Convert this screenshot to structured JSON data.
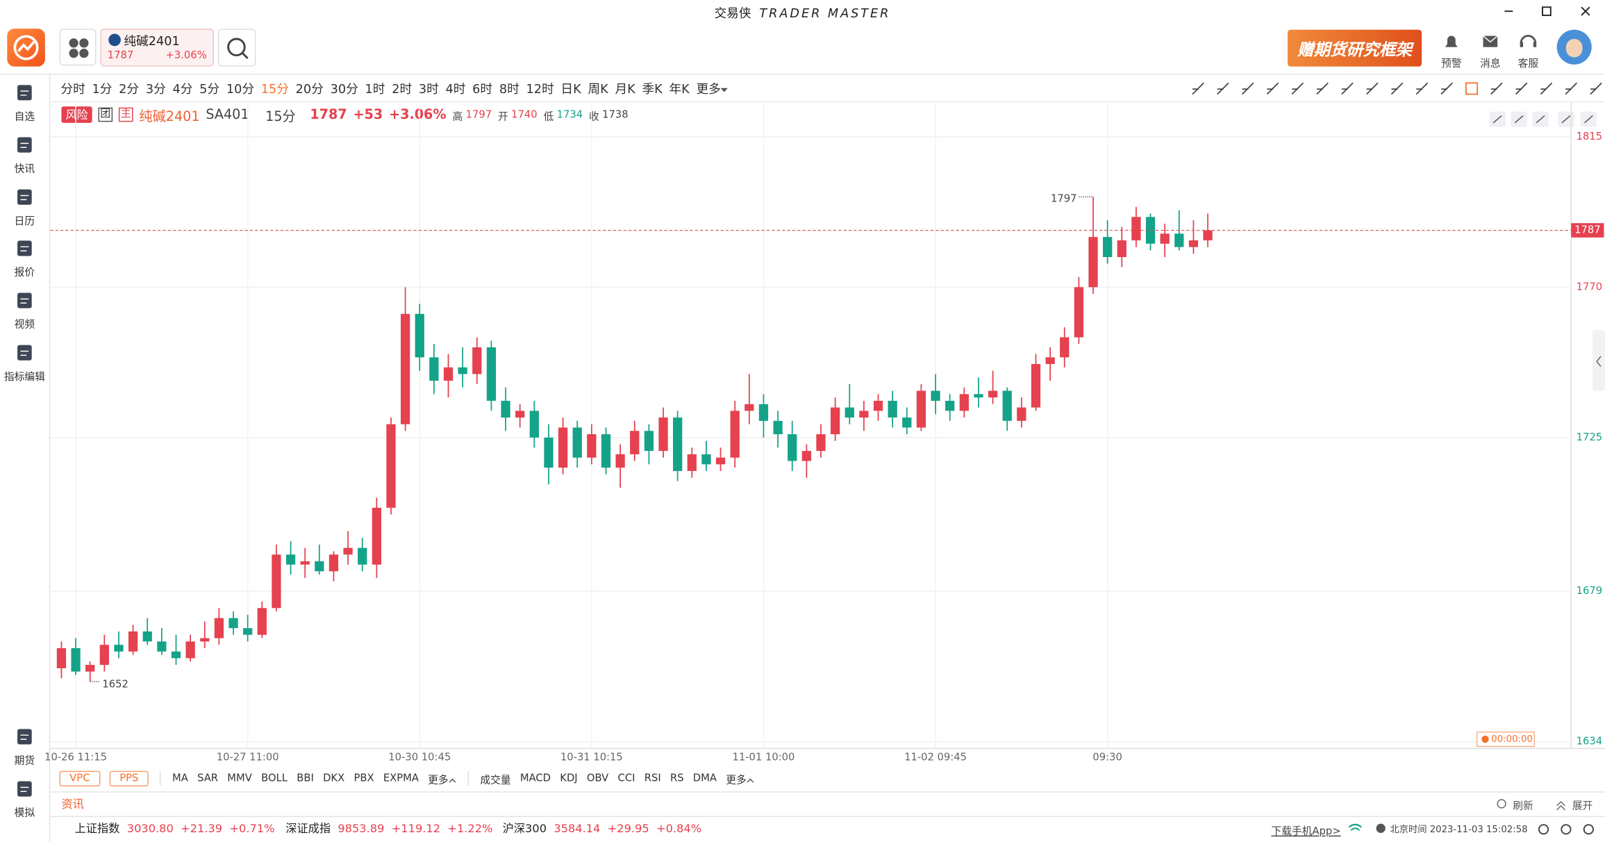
{
  "window": {
    "title": "交易侠",
    "subtitle": "TRADER MASTER"
  },
  "top_bar": {
    "contract": {
      "name": "纯碱2401",
      "price": "1787",
      "change": "+3.06%"
    },
    "banner": "赠期货研究框架",
    "actions": [
      "预警",
      "消息",
      "客服"
    ]
  },
  "sidebar": {
    "top": [
      "自选",
      "快讯",
      "日历",
      "报价",
      "视频",
      "指标编辑"
    ],
    "bottom": [
      "期货",
      "模拟"
    ]
  },
  "periods": {
    "items": [
      "分时",
      "1分",
      "2分",
      "3分",
      "4分",
      "5分",
      "10分",
      "15分",
      "20分",
      "30分",
      "1时",
      "2时",
      "3时",
      "4时",
      "6时",
      "8时",
      "12时",
      "日K",
      "周K",
      "月K",
      "季K",
      "年K",
      "更多"
    ],
    "active": 7
  },
  "quote": {
    "risk": "风险",
    "tags": [
      "团",
      "主"
    ],
    "name": "纯碱2401",
    "code": "SA401",
    "period": "15分",
    "price": 1787,
    "change": "+53",
    "pct": "+3.06%",
    "high_label": "高",
    "high": 1797,
    "open_label": "开",
    "open": 1740,
    "low_label": "低",
    "low": 1734,
    "close_label": "收",
    "close": 1738
  },
  "chart_data": {
    "type": "candlestick",
    "up_color": "#e5414f",
    "down_color": "#14a389",
    "grid": true,
    "categories": [
      null,
      "10-26 11:15",
      null,
      null,
      null,
      null,
      null,
      null,
      null,
      null,
      null,
      null,
      null,
      "10-27 11:00",
      null,
      null,
      null,
      null,
      null,
      null,
      null,
      null,
      null,
      null,
      null,
      "10-30 10:45",
      null,
      null,
      null,
      null,
      null,
      null,
      null,
      null,
      null,
      null,
      null,
      "10-31 10:15",
      null,
      null,
      null,
      null,
      null,
      null,
      null,
      null,
      null,
      null,
      null,
      "11-01 10:00",
      null,
      null,
      null,
      null,
      null,
      null,
      null,
      null,
      null,
      null,
      null,
      "11-02 09:45",
      null,
      null,
      null,
      null,
      null,
      null,
      null,
      null,
      null,
      null,
      null,
      "09:30",
      null,
      null,
      null,
      null,
      null,
      null,
      null
    ],
    "open": [
      1656,
      1662,
      1655,
      1657,
      1663,
      1661,
      1667,
      1664,
      1661,
      1659,
      1664,
      1665,
      1671,
      1668,
      1666,
      1674,
      1690,
      1687,
      1688,
      1685,
      1690,
      1692,
      1687,
      1704,
      1729,
      1762,
      1749,
      1742,
      1746,
      1744,
      1752,
      1736,
      1731,
      1733,
      1725,
      1716,
      1728,
      1719,
      1726,
      1716,
      1720,
      1727,
      1721,
      1731,
      1715,
      1720,
      1717,
      1719,
      1733,
      1735,
      1730,
      1726,
      1718,
      1721,
      1726,
      1734,
      1731,
      1733,
      1736,
      1731,
      1728,
      1739,
      1736,
      1733,
      1738,
      1737,
      1739,
      1730,
      1734,
      1747,
      1749,
      1755,
      1770,
      1785,
      1779,
      1784,
      1791,
      1783,
      1786,
      1782,
      1784
    ],
    "high": [
      1664,
      1665,
      1658,
      1666,
      1667,
      1669,
      1671,
      1668,
      1666,
      1666,
      1670,
      1674,
      1673,
      1672,
      1676,
      1693,
      1694,
      1692,
      1693,
      1691,
      1697,
      1695,
      1707,
      1731,
      1770,
      1765,
      1753,
      1750,
      1752,
      1755,
      1754,
      1740,
      1735,
      1736,
      1729,
      1731,
      1730,
      1729,
      1728,
      1723,
      1730,
      1729,
      1734,
      1733,
      1722,
      1724,
      1722,
      1736,
      1744,
      1738,
      1733,
      1730,
      1723,
      1729,
      1737,
      1741,
      1736,
      1738,
      1739,
      1734,
      1741,
      1744,
      1738,
      1740,
      1743,
      1745,
      1740,
      1737,
      1750,
      1752,
      1758,
      1773,
      1797,
      1790,
      1788,
      1794,
      1792,
      1789,
      1793,
      1790,
      1792
    ],
    "low": [
      1653,
      1654,
      1652,
      1655,
      1659,
      1660,
      1663,
      1660,
      1657,
      1658,
      1662,
      1663,
      1666,
      1664,
      1665,
      1673,
      1684,
      1683,
      1684,
      1682,
      1687,
      1685,
      1683,
      1702,
      1727,
      1745,
      1738,
      1737,
      1740,
      1741,
      1733,
      1727,
      1728,
      1722,
      1711,
      1714,
      1716,
      1717,
      1714,
      1710,
      1718,
      1717,
      1719,
      1712,
      1713,
      1715,
      1715,
      1716,
      1729,
      1725,
      1722,
      1715,
      1713,
      1719,
      1724,
      1729,
      1727,
      1730,
      1728,
      1726,
      1727,
      1732,
      1730,
      1731,
      1734,
      1735,
      1727,
      1728,
      1733,
      1742,
      1746,
      1753,
      1768,
      1777,
      1776,
      1782,
      1781,
      1779,
      1781,
      1780,
      1782
    ],
    "close": [
      1662,
      1655,
      1657,
      1663,
      1661,
      1667,
      1664,
      1661,
      1659,
      1664,
      1665,
      1671,
      1668,
      1666,
      1674,
      1690,
      1687,
      1688,
      1685,
      1690,
      1692,
      1687,
      1704,
      1729,
      1762,
      1749,
      1742,
      1746,
      1744,
      1752,
      1736,
      1731,
      1733,
      1725,
      1716,
      1728,
      1719,
      1726,
      1716,
      1720,
      1727,
      1721,
      1731,
      1715,
      1720,
      1717,
      1719,
      1733,
      1735,
      1730,
      1726,
      1718,
      1721,
      1726,
      1734,
      1731,
      1733,
      1736,
      1731,
      1728,
      1739,
      1736,
      1733,
      1738,
      1737,
      1739,
      1730,
      1734,
      1747,
      1749,
      1755,
      1770,
      1785,
      1779,
      1784,
      1791,
      1783,
      1786,
      1782,
      1784,
      1787
    ],
    "ylim": [
      1632,
      1817
    ],
    "yticks": [
      1815,
      1770,
      1725,
      1679,
      1634
    ],
    "last_price": 1787,
    "max_mark": 1797,
    "min_mark": 1652,
    "timer": "00:00:00"
  },
  "indicators": {
    "main_boxed": [
      "VPC",
      "PPS"
    ],
    "main": [
      "MA",
      "SAR",
      "MMV",
      "BOLL",
      "BBI",
      "DKX",
      "PBX",
      "EXPMA"
    ],
    "main_more": "更多",
    "sub": [
      "成交量",
      "MACD",
      "KDJ",
      "OBV",
      "CCI",
      "RSI",
      "RS",
      "DMA"
    ],
    "sub_more": "更多"
  },
  "news": {
    "title": "资讯",
    "refresh": "刷新",
    "expand": "展开"
  },
  "status": {
    "indices": [
      {
        "name": "上证指数",
        "value": "3030.80",
        "change": "+21.39",
        "pct": "+0.71%"
      },
      {
        "name": "深证成指",
        "value": "9853.89",
        "change": "+119.12",
        "pct": "+1.22%"
      },
      {
        "name": "沪深300",
        "value": "3584.14",
        "change": "+29.95",
        "pct": "+0.84%"
      }
    ],
    "download": "下载手机App>",
    "clock": "北京时间 2023-11-03 15:02:58"
  }
}
